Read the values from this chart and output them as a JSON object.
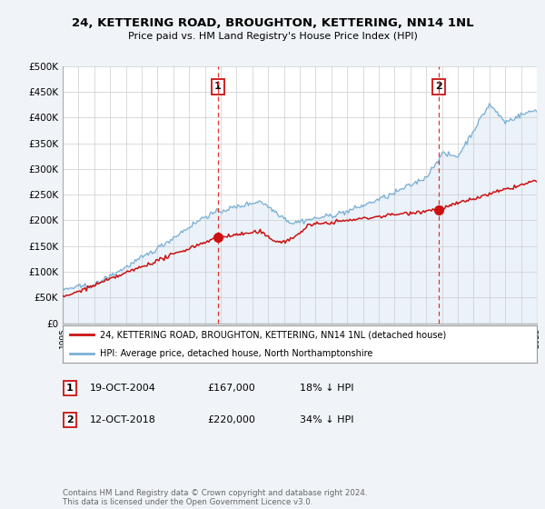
{
  "title": "24, KETTERING ROAD, BROUGHTON, KETTERING, NN14 1NL",
  "subtitle": "Price paid vs. HM Land Registry's House Price Index (HPI)",
  "hpi_label": "HPI: Average price, detached house, North Northamptonshire",
  "property_label": "24, KETTERING ROAD, BROUGHTON, KETTERING, NN14 1NL (detached house)",
  "hpi_color": "#7bafd4",
  "hpi_fill_color": "#c8dcee",
  "property_color": "#cc1111",
  "dashed_color": "#dd3333",
  "bg_color": "#f0f4f8",
  "plot_bg": "#ffffff",
  "ylim": [
    0,
    500000
  ],
  "yticks": [
    0,
    50000,
    100000,
    150000,
    200000,
    250000,
    300000,
    350000,
    400000,
    450000,
    500000
  ],
  "ytick_labels": [
    "£0",
    "£50K",
    "£100K",
    "£150K",
    "£200K",
    "£250K",
    "£300K",
    "£350K",
    "£400K",
    "£450K",
    "£500K"
  ],
  "sale1_x": 2004.8,
  "sale1_y": 167000,
  "sale1_label": "1",
  "sale1_date": "19-OCT-2004",
  "sale1_price": "£167,000",
  "sale1_hpi": "18% ↓ HPI",
  "sale2_x": 2018.8,
  "sale2_y": 220000,
  "sale2_label": "2",
  "sale2_date": "12-OCT-2018",
  "sale2_price": "£220,000",
  "sale2_hpi": "34% ↓ HPI",
  "footer": "Contains HM Land Registry data © Crown copyright and database right 2024.\nThis data is licensed under the Open Government Licence v3.0.",
  "xmin": 1995,
  "xmax": 2025
}
